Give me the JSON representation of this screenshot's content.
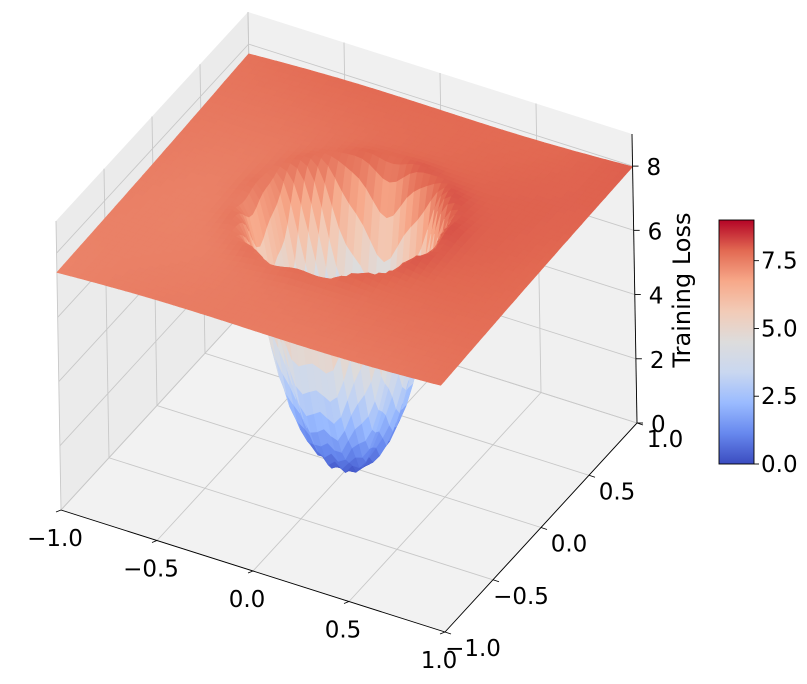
{
  "chart_data": {
    "type": "surface3d",
    "title": "",
    "colormap": "coolwarm",
    "colormap_colors": [
      "#3b4cc0",
      "#6788ee",
      "#9abbff",
      "#c9d7f0",
      "#dddcdc",
      "#f2cbb7",
      "#f7a889",
      "#e26952",
      "#b40426"
    ],
    "x_axis": {
      "range": [
        -1.0,
        1.0
      ],
      "ticks": [
        "−1.0",
        "−0.5",
        "0.0",
        "0.5",
        "1.0"
      ]
    },
    "y_axis": {
      "range": [
        -1.0,
        1.0
      ],
      "ticks": [
        "−1.0",
        "−0.5",
        "0.0",
        "0.5",
        "1.0"
      ]
    },
    "z_axis": {
      "label": "Training Loss",
      "range": [
        0,
        9
      ],
      "ticks": [
        "0",
        "2",
        "4",
        "6",
        "8"
      ]
    },
    "colorbar": {
      "range": [
        0.0,
        9.0
      ],
      "ticks": [
        "0.0",
        "2.5",
        "5.0",
        "7.5"
      ]
    },
    "surface_description": {
      "plateau_loss": 7.6,
      "plateau_loss_far_corner": 7.9,
      "basin_center": [
        0.0,
        0.0
      ],
      "basin_radius": 0.45,
      "basin_min_loss": 0.0,
      "ripple_frequency": 11
    }
  }
}
